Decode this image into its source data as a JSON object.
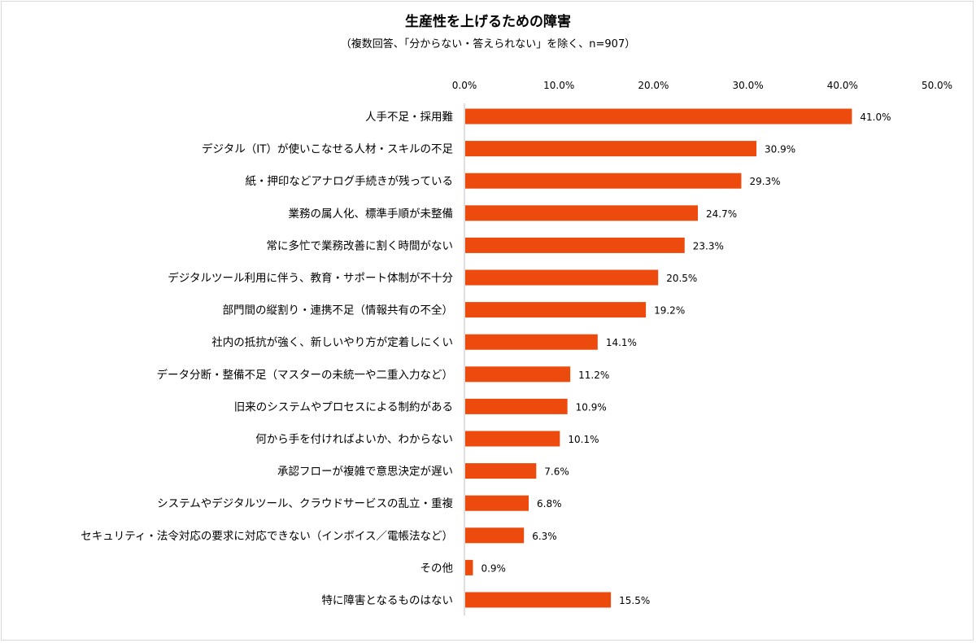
{
  "chart_data": {
    "type": "bar",
    "orientation": "horizontal",
    "title": "生産性を上げるための障害",
    "subtitle": "（複数回答、「分からない・答えられない」を除く、n=907）",
    "categories": [
      "人手不足・採用難",
      "デジタル（IT）が使いこなせる人材・スキルの不足",
      "紙・押印などアナログ手続きが残っている",
      "業務の属人化、標準手順が未整備",
      "常に多忙で業務改善に割く時間がない",
      "デジタルツール利用に伴う、教育・サポート体制が不十分",
      "部門間の縦割り・連携不足（情報共有の不全）",
      "社内の抵抗が強く、新しいやり方が定着しにくい",
      "データ分断・整備不足（マスターの未統一や二重入力など）",
      "旧来のシステムやプロセスによる制約がある",
      "何から手を付ければよいか、わからない",
      "承認フローが複雑で意思決定が遅い",
      "システムやデジタルツール、クラウドサービスの乱立・重複",
      "セキュリティ・法令対応の要求に対応できない（インボイス／電帳法など）",
      "その他",
      "特に障害となるものはない"
    ],
    "values": [
      41.0,
      30.9,
      29.3,
      24.7,
      23.3,
      20.5,
      19.2,
      14.1,
      11.2,
      10.9,
      10.1,
      7.6,
      6.8,
      6.3,
      0.9,
      15.5
    ],
    "value_labels": [
      "41.0%",
      "30.9%",
      "29.3%",
      "24.7%",
      "23.3%",
      "20.5%",
      "19.2%",
      "14.1%",
      "11.2%",
      "10.9%",
      "10.1%",
      "7.6%",
      "6.8%",
      "6.3%",
      "0.9%",
      "15.5%"
    ],
    "xlim": [
      0,
      50
    ],
    "x_ticks": [
      0,
      10,
      20,
      30,
      40,
      50
    ],
    "x_tick_labels": [
      "0.0%",
      "10.0%",
      "20.0%",
      "30.0%",
      "40.0%",
      "50.0%"
    ],
    "x_axis_position": "top",
    "grid": false,
    "bar_color": "#ED4A0E"
  }
}
